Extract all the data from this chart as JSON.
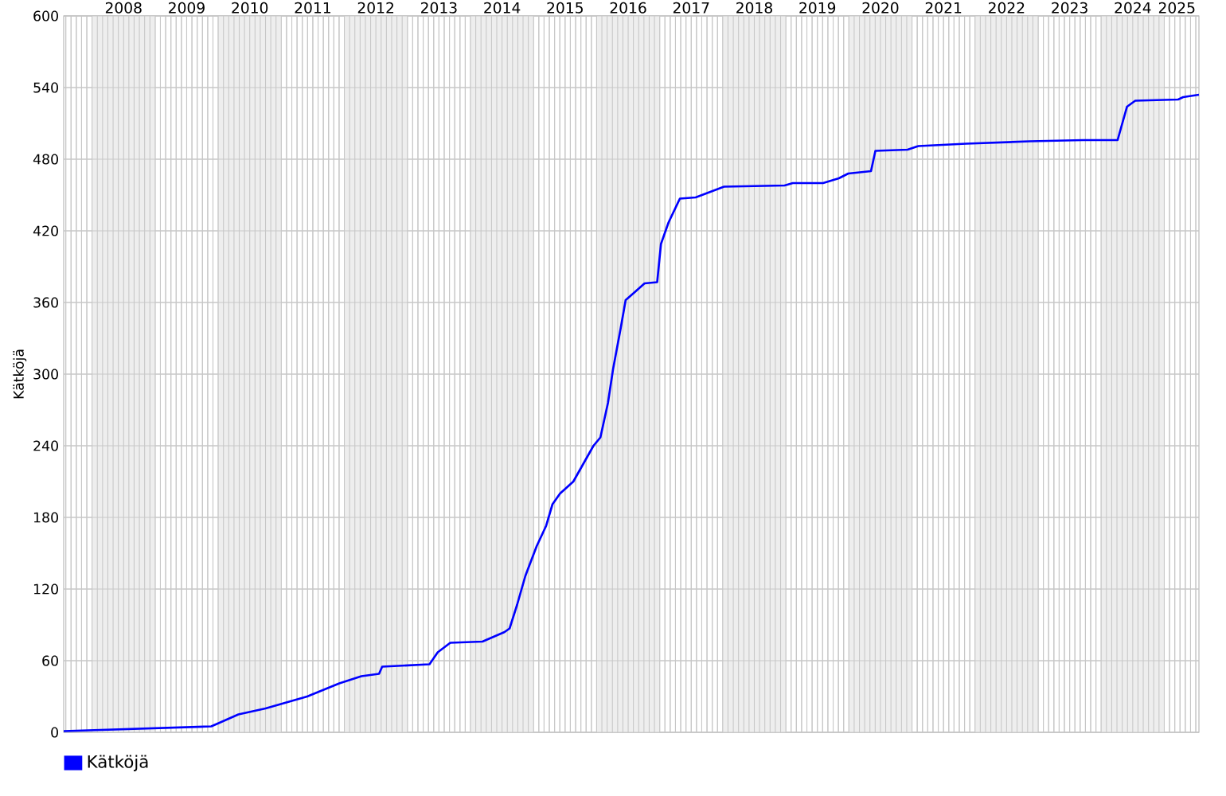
{
  "chart_data": {
    "type": "line",
    "ylabel": "Kätköjä",
    "x": [
      2007.55,
      2009.89,
      2010.02,
      2010.32,
      2010.75,
      2011.08,
      2011.41,
      2011.92,
      2012.27,
      2012.55,
      2012.6,
      2013.35,
      2013.48,
      2013.68,
      2014.19,
      2014.54,
      2014.62,
      2014.74,
      2014.87,
      2015.05,
      2015.2,
      2015.3,
      2015.42,
      2015.63,
      2015.95,
      2016.06,
      2016.18,
      2016.26,
      2016.38,
      2016.46,
      2016.59,
      2016.76,
      2016.96,
      2017.02,
      2017.14,
      2017.32,
      2017.57,
      2017.82,
      2018.02,
      2018.98,
      2019.11,
      2019.59,
      2019.84,
      2019.99,
      2020.35,
      2020.42,
      2020.93,
      2021.1,
      2021.86,
      2022.87,
      2023.71,
      2024.26,
      2024.34,
      2024.41,
      2024.54,
      2025.22,
      2025.3,
      2025.55
    ],
    "series": [
      {
        "name": "Kätköjä",
        "color": "#0000ff",
        "values": [
          1,
          5,
          8,
          15,
          20,
          25,
          30,
          41,
          47,
          49,
          55,
          57,
          67,
          75,
          76,
          84,
          87,
          107,
          131,
          156,
          173,
          191,
          200,
          210,
          240,
          247,
          276,
          304,
          338,
          362,
          368,
          376,
          377,
          409,
          427,
          447,
          448,
          453,
          457,
          458,
          460,
          460,
          464,
          468,
          470,
          487,
          488,
          491,
          493,
          495,
          496,
          496,
          511,
          524,
          529,
          530,
          532,
          534
        ]
      }
    ],
    "xlim": [
      2007.55,
      2025.55
    ],
    "xticks": [
      {
        "value": 2008.5,
        "label": "2008"
      },
      {
        "value": 2009.5,
        "label": "2009"
      },
      {
        "value": 2010.5,
        "label": "2010"
      },
      {
        "value": 2011.5,
        "label": "2011"
      },
      {
        "value": 2012.5,
        "label": "2012"
      },
      {
        "value": 2013.5,
        "label": "2013"
      },
      {
        "value": 2014.5,
        "label": "2014"
      },
      {
        "value": 2015.5,
        "label": "2015"
      },
      {
        "value": 2016.5,
        "label": "2016"
      },
      {
        "value": 2017.5,
        "label": "2017"
      },
      {
        "value": 2018.5,
        "label": "2018"
      },
      {
        "value": 2019.5,
        "label": "2019"
      },
      {
        "value": 2020.5,
        "label": "2020"
      },
      {
        "value": 2021.5,
        "label": "2021"
      },
      {
        "value": 2022.5,
        "label": "2022"
      },
      {
        "value": 2023.5,
        "label": "2023"
      },
      {
        "value": 2024.5,
        "label": "2024"
      },
      {
        "value": 2025.2,
        "label": "2025"
      }
    ],
    "ylim": [
      0,
      600
    ],
    "yticks": [
      0,
      60,
      120,
      180,
      240,
      300,
      360,
      420,
      480,
      540,
      600
    ],
    "bands": [
      {
        "axis": "x",
        "from": 2008,
        "to": 2009,
        "color": "#eeeeee"
      },
      {
        "axis": "x",
        "from": 2010,
        "to": 2011,
        "color": "#eeeeee"
      },
      {
        "axis": "x",
        "from": 2012,
        "to": 2013,
        "color": "#eeeeee"
      },
      {
        "axis": "x",
        "from": 2014,
        "to": 2015,
        "color": "#eeeeee"
      },
      {
        "axis": "x",
        "from": 2016,
        "to": 2017,
        "color": "#eeeeee"
      },
      {
        "axis": "x",
        "from": 2018,
        "to": 2019,
        "color": "#eeeeee"
      },
      {
        "axis": "x",
        "from": 2020,
        "to": 2021,
        "color": "#eeeeee"
      },
      {
        "axis": "x",
        "from": 2022,
        "to": 2023,
        "color": "#eeeeee"
      },
      {
        "axis": "x",
        "from": 2024,
        "to": 2025,
        "color": "#eeeeee"
      }
    ],
    "grid": true,
    "legend": "bottom left",
    "marker": "none",
    "line_style": "solid"
  }
}
